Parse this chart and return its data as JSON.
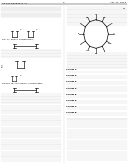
{
  "background_color": "#ffffff",
  "header_left": "US 2013/0090372 A1",
  "header_right": "Apr. 11, 2013",
  "page_num": "2",
  "text_color": "#333333",
  "line_color": "#aaaaaa",
  "struct_color": "#000000"
}
